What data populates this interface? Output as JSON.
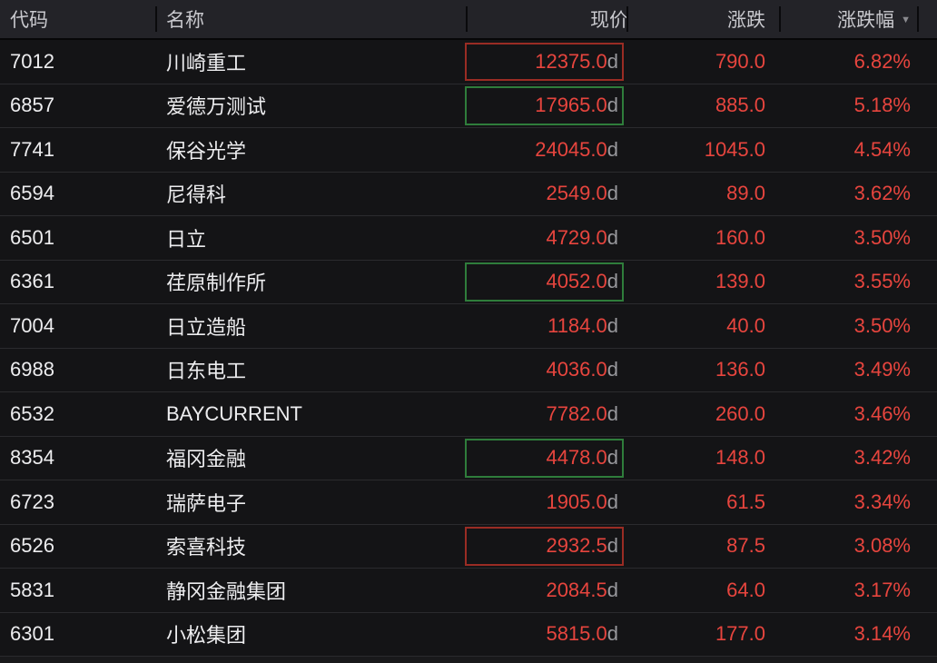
{
  "header": {
    "columns": [
      {
        "key": "code",
        "label": "代码"
      },
      {
        "key": "name",
        "label": "名称"
      },
      {
        "key": "price",
        "label": "现价"
      },
      {
        "key": "change",
        "label": "涨跌"
      },
      {
        "key": "pct",
        "label": "涨跌幅"
      }
    ],
    "sort": {
      "column": "pct",
      "direction": "desc",
      "icon": "▼"
    }
  },
  "colors": {
    "background": "#141416",
    "header_background": "#232328",
    "row_separator": "#2b2b2e",
    "up_text": "#e7453e",
    "suffix_gray": "#98989c",
    "primary_text": "#ededef",
    "highlight_red_border": "#9a2c24",
    "highlight_green_border": "#2f7d3b"
  },
  "rows": [
    {
      "code": "7012",
      "name": "川崎重工",
      "price": "12375.0",
      "price_suffix": "d",
      "change": "790.0",
      "pct": "6.82%",
      "price_box": "red"
    },
    {
      "code": "6857",
      "name": "爱德万测试",
      "price": "17965.0",
      "price_suffix": "d",
      "change": "885.0",
      "pct": "5.18%",
      "price_box": "green"
    },
    {
      "code": "7741",
      "name": "保谷光学",
      "price": "24045.0",
      "price_suffix": "d",
      "change": "1045.0",
      "pct": "4.54%",
      "price_box": "none"
    },
    {
      "code": "6594",
      "name": "尼得科",
      "price": "2549.0",
      "price_suffix": "d",
      "change": "89.0",
      "pct": "3.62%",
      "price_box": "none"
    },
    {
      "code": "6501",
      "name": "日立",
      "price": "4729.0",
      "price_suffix": "d",
      "change": "160.0",
      "pct": "3.50%",
      "price_box": "none"
    },
    {
      "code": "6361",
      "name": "荏原制作所",
      "price": "4052.0",
      "price_suffix": "d",
      "change": "139.0",
      "pct": "3.55%",
      "price_box": "green"
    },
    {
      "code": "7004",
      "name": "日立造船",
      "price": "1184.0",
      "price_suffix": "d",
      "change": "40.0",
      "pct": "3.50%",
      "price_box": "none"
    },
    {
      "code": "6988",
      "name": "日东电工",
      "price": "4036.0",
      "price_suffix": "d",
      "change": "136.0",
      "pct": "3.49%",
      "price_box": "none"
    },
    {
      "code": "6532",
      "name": "BAYCURRENT",
      "price": "7782.0",
      "price_suffix": "d",
      "change": "260.0",
      "pct": "3.46%",
      "price_box": "none"
    },
    {
      "code": "8354",
      "name": "福冈金融",
      "price": "4478.0",
      "price_suffix": "d",
      "change": "148.0",
      "pct": "3.42%",
      "price_box": "green"
    },
    {
      "code": "6723",
      "name": "瑞萨电子",
      "price": "1905.0",
      "price_suffix": "d",
      "change": "61.5",
      "pct": "3.34%",
      "price_box": "none"
    },
    {
      "code": "6526",
      "name": "索喜科技",
      "price": "2932.5",
      "price_suffix": "d",
      "change": "87.5",
      "pct": "3.08%",
      "price_box": "red"
    },
    {
      "code": "5831",
      "name": "静冈金融集团",
      "price": "2084.5",
      "price_suffix": "d",
      "change": "64.0",
      "pct": "3.17%",
      "price_box": "none"
    },
    {
      "code": "6301",
      "name": "小松集团",
      "price": "5815.0",
      "price_suffix": "d",
      "change": "177.0",
      "pct": "3.14%",
      "price_box": "none"
    }
  ]
}
